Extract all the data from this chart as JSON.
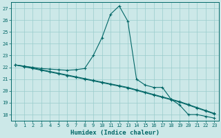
{
  "title": "",
  "xlabel": "Humidex (Indice chaleur)",
  "ylabel": "",
  "background_color": "#cce8e8",
  "grid_color": "#99cccc",
  "line_color": "#006666",
  "xlim": [
    -0.5,
    23.5
  ],
  "ylim": [
    17.5,
    27.5
  ],
  "yticks": [
    18,
    19,
    20,
    21,
    22,
    23,
    24,
    25,
    26,
    27
  ],
  "xticks": [
    0,
    1,
    2,
    3,
    4,
    5,
    6,
    7,
    8,
    9,
    10,
    11,
    12,
    13,
    14,
    15,
    16,
    17,
    18,
    19,
    20,
    21,
    22,
    23
  ],
  "series1_x": [
    0,
    1,
    2,
    3,
    4,
    5,
    6,
    7,
    8,
    9,
    10,
    11,
    12,
    13,
    14,
    15,
    16,
    17,
    18,
    19,
    20,
    21,
    22,
    23
  ],
  "series1_y": [
    22.2,
    22.1,
    22.0,
    21.9,
    21.85,
    21.8,
    21.75,
    21.8,
    21.9,
    23.0,
    24.5,
    26.5,
    27.2,
    25.9,
    21.0,
    20.5,
    20.3,
    20.3,
    19.3,
    18.8,
    18.0,
    18.0,
    17.85,
    17.7
  ],
  "series2_x": [
    0,
    1,
    2,
    3,
    4,
    5,
    6,
    7,
    8,
    9,
    10,
    11,
    12,
    13,
    14,
    15,
    16,
    17,
    18,
    19,
    20,
    21,
    22,
    23
  ],
  "series2_y": [
    22.2,
    22.1,
    21.95,
    21.8,
    21.65,
    21.5,
    21.35,
    21.2,
    21.05,
    20.9,
    20.75,
    20.6,
    20.45,
    20.3,
    20.1,
    19.9,
    19.7,
    19.5,
    19.3,
    19.1,
    18.85,
    18.6,
    18.35,
    18.1
  ],
  "series3_x": [
    0,
    1,
    2,
    3,
    4,
    5,
    6,
    7,
    8,
    9,
    10,
    11,
    12,
    13,
    14,
    15,
    16,
    17,
    18,
    19,
    20,
    21,
    22,
    23
  ],
  "series3_y": [
    22.2,
    22.05,
    21.9,
    21.75,
    21.6,
    21.45,
    21.3,
    21.15,
    21.0,
    20.85,
    20.7,
    20.55,
    20.4,
    20.25,
    20.05,
    19.85,
    19.65,
    19.45,
    19.25,
    19.05,
    18.8,
    18.55,
    18.3,
    18.05
  ],
  "marker": "+",
  "markersize": 3,
  "linewidth": 0.8,
  "tick_fontsize": 5,
  "label_fontsize": 6.5
}
